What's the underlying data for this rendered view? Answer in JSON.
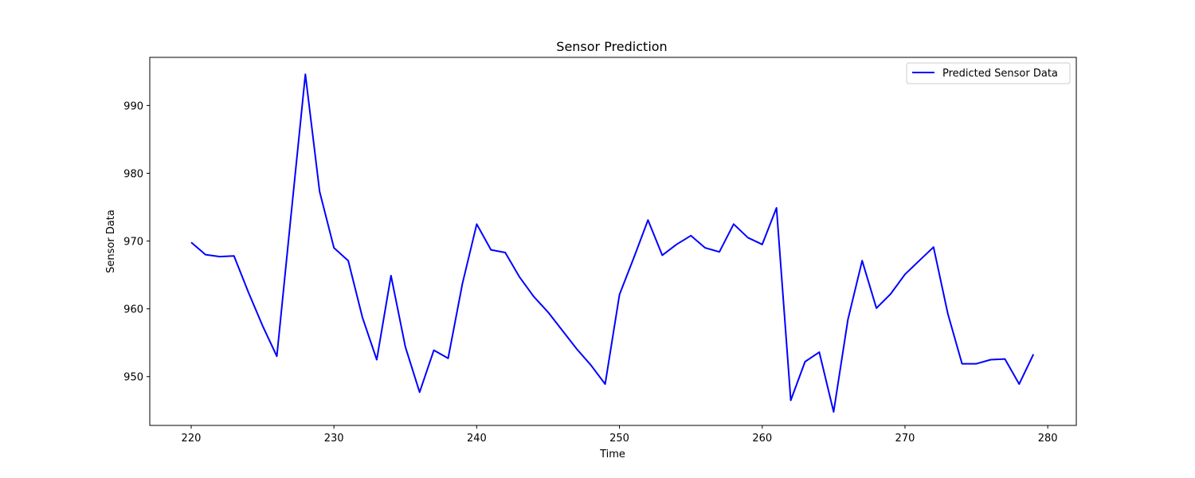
{
  "chart_data": {
    "type": "line",
    "title": "Sensor Prediction",
    "xlabel": "Time",
    "ylabel": "Sensor Data",
    "xlim": [
      217.1,
      282.0
    ],
    "ylim": [
      942.8,
      997.1
    ],
    "xticks": [
      220,
      230,
      240,
      250,
      260,
      270,
      280
    ],
    "yticks": [
      950,
      960,
      970,
      980,
      990
    ],
    "grid": false,
    "legend_position": "upper-right",
    "series": [
      {
        "name": "Predicted Sensor Data",
        "color": "#0000ff",
        "x": [
          220,
          221,
          222,
          223,
          224,
          225,
          226,
          227,
          228,
          229,
          230,
          231,
          232,
          233,
          234,
          235,
          236,
          237,
          238,
          239,
          240,
          241,
          242,
          243,
          244,
          245,
          246,
          247,
          248,
          249,
          250,
          251,
          252,
          253,
          254,
          255,
          256,
          257,
          258,
          259,
          260,
          261,
          262,
          263,
          264,
          265,
          266,
          267,
          268,
          269,
          270,
          271,
          272,
          273,
          274,
          275,
          276,
          277,
          278,
          279
        ],
        "y": [
          969.8,
          968.0,
          967.7,
          967.8,
          962.5,
          957.5,
          953.0,
          973.9,
          994.6,
          977.3,
          969.0,
          967.1,
          958.7,
          952.5,
          964.9,
          954.4,
          947.7,
          953.9,
          952.7,
          963.7,
          972.5,
          968.7,
          968.3,
          964.7,
          961.8,
          959.5,
          956.8,
          954.1,
          951.7,
          948.9,
          962.1,
          967.5,
          973.1,
          967.9,
          969.5,
          970.8,
          969.0,
          968.4,
          972.5,
          970.5,
          969.5,
          974.9,
          946.5,
          952.2,
          953.6,
          944.8,
          958.4,
          967.1,
          960.1,
          962.2,
          965.1,
          967.1,
          969.1,
          959.3,
          951.9,
          951.9,
          952.5,
          952.6,
          948.9,
          953.3
        ]
      }
    ]
  }
}
